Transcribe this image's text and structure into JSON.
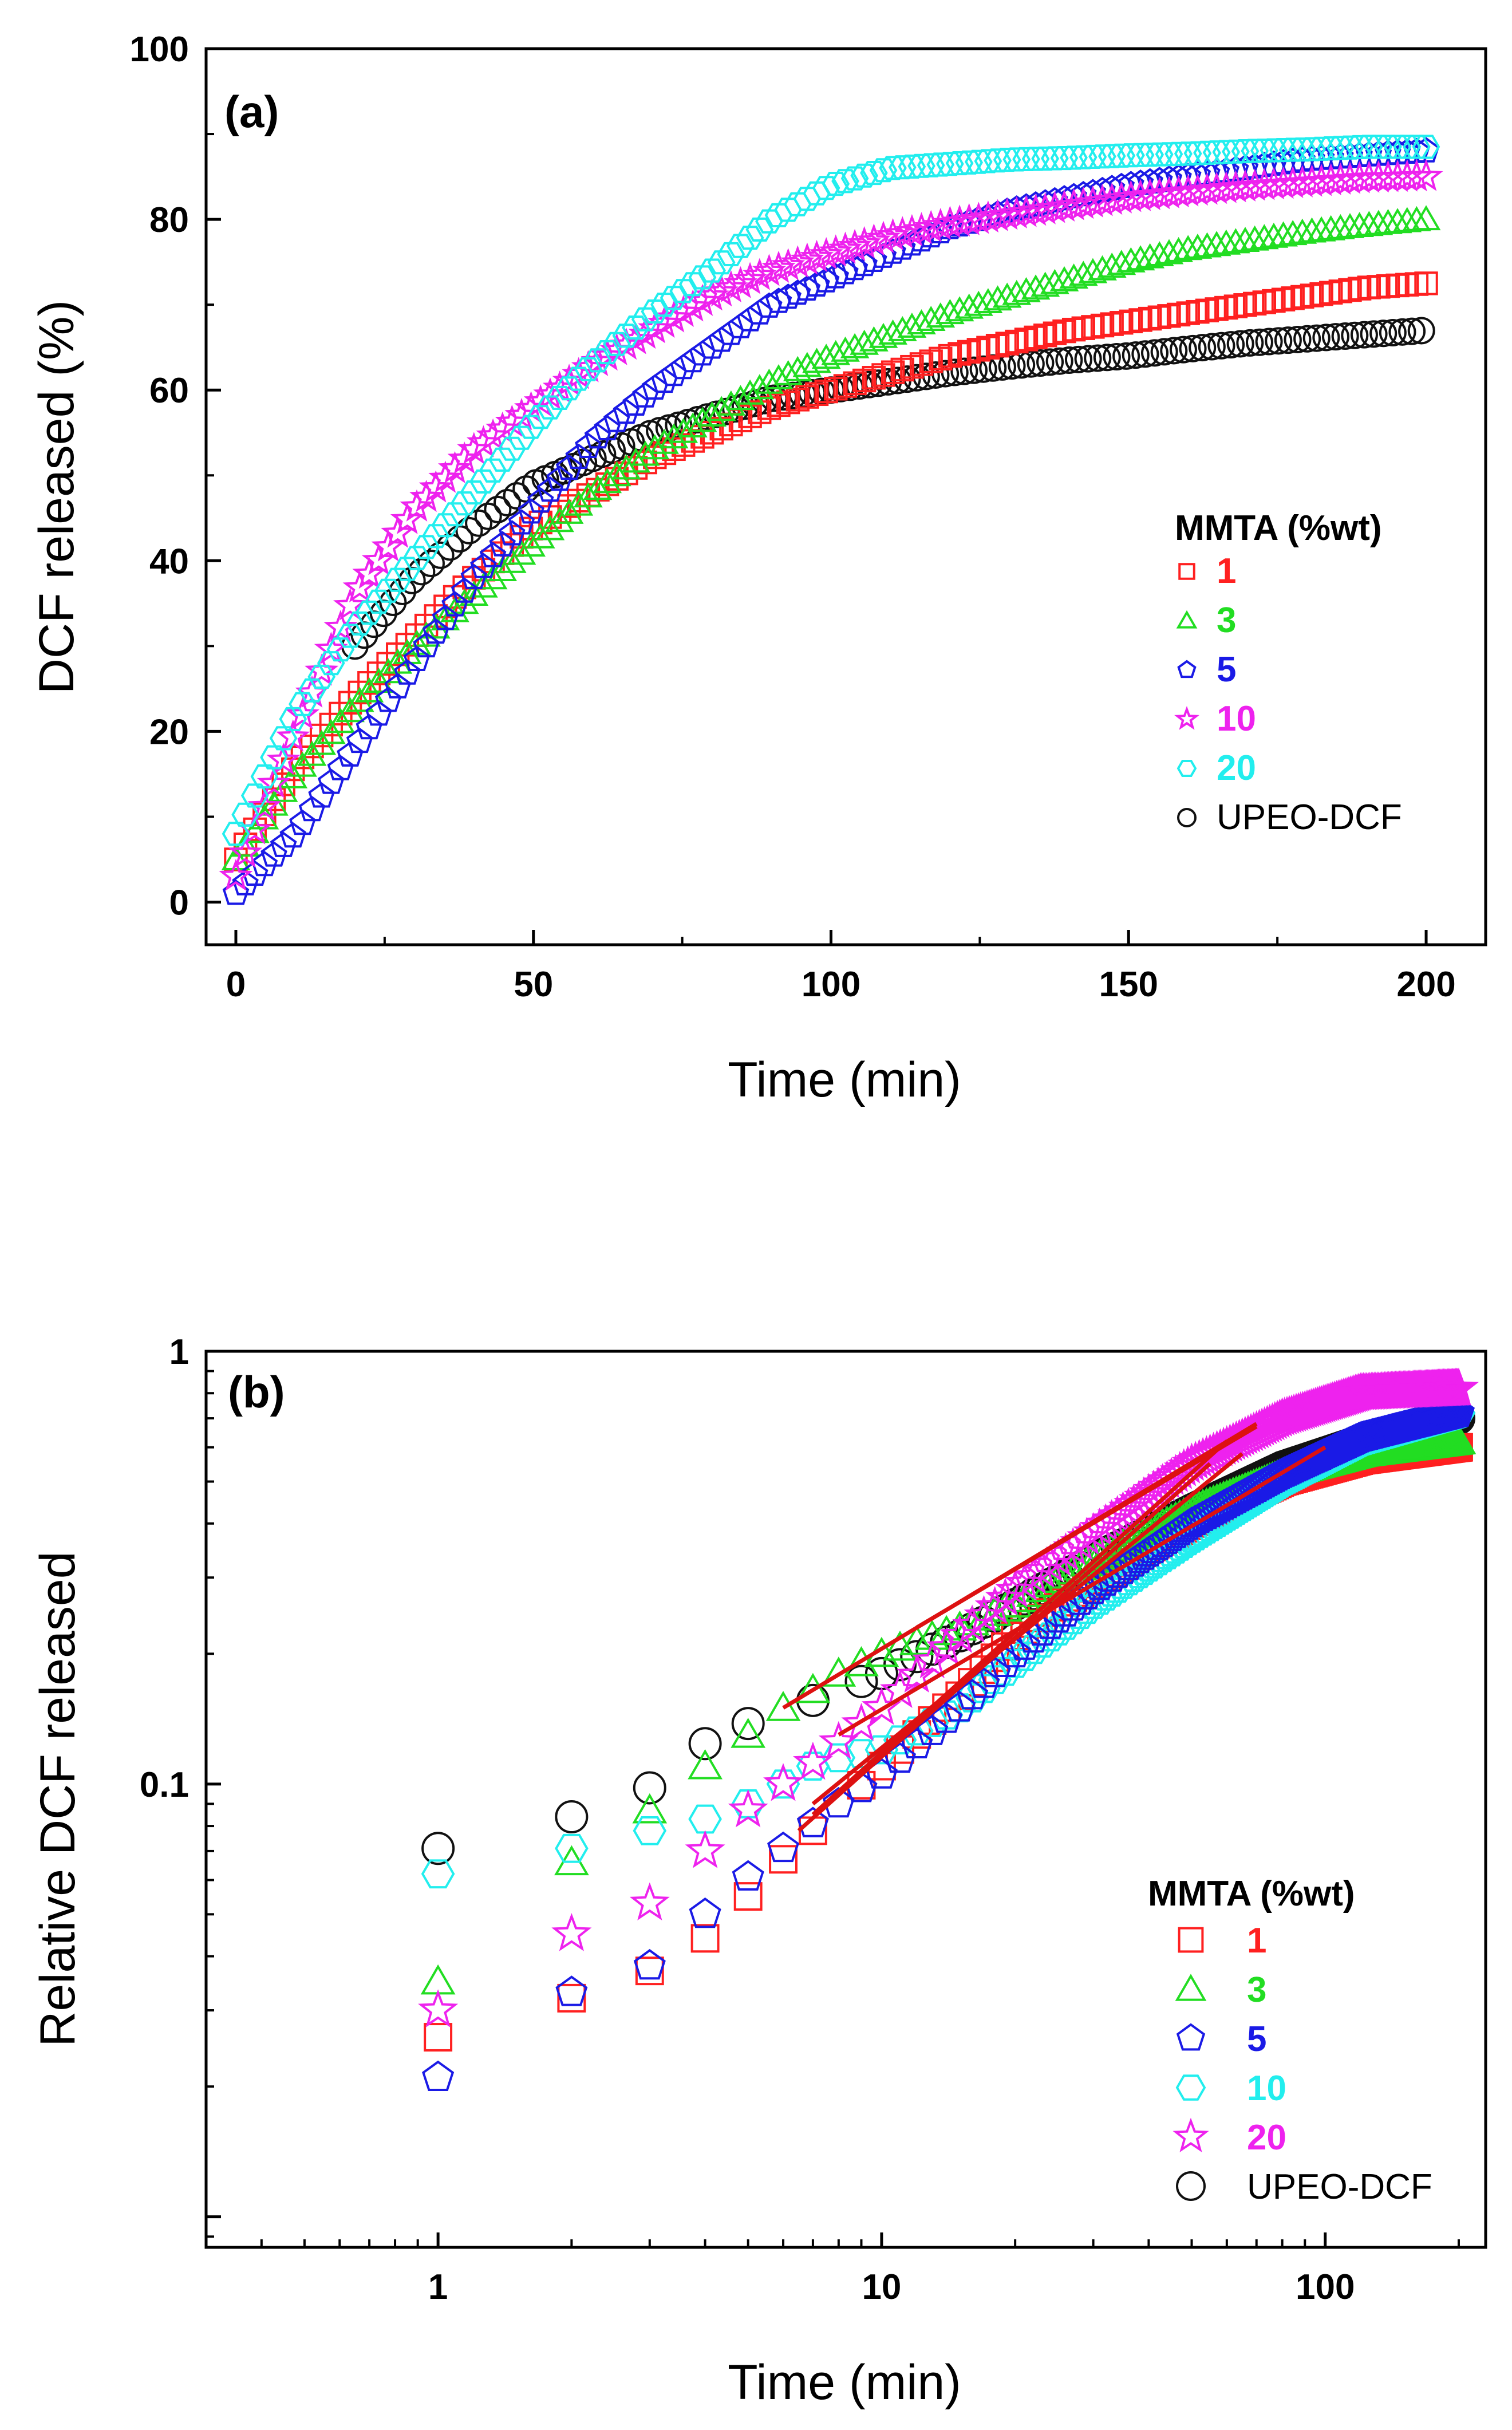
{
  "chart_data": [
    {
      "panel": "(a)",
      "type": "scatter",
      "xlabel": "Time (min)",
      "ylabel": "DCF released (%)",
      "xlim": [
        -5,
        210
      ],
      "ylim": [
        -5,
        100
      ],
      "xticks": [
        0,
        50,
        100,
        150,
        200
      ],
      "yticks": [
        0,
        20,
        40,
        60,
        80,
        100
      ],
      "x_minor_ticks": [
        25,
        75,
        125,
        175
      ],
      "y_minor_ticks": [
        10,
        30,
        50,
        70,
        90
      ],
      "legend_title": "MMTA (%wt)",
      "legend_position": "center-right",
      "series": [
        {
          "name": "1",
          "marker": "square",
          "color": "#ff2020",
          "x": [
            0,
            10,
            20,
            30,
            40,
            50,
            60,
            70,
            80,
            90,
            100,
            110,
            120,
            130,
            140,
            150,
            160,
            170,
            180,
            190,
            200
          ],
          "y": [
            5,
            16,
            24,
            31,
            38,
            44,
            48,
            52,
            55,
            58,
            60,
            62,
            64,
            65.5,
            67,
            68,
            69,
            70,
            71,
            72,
            72.5
          ]
        },
        {
          "name": "3",
          "marker": "triangle",
          "color": "#22dd22",
          "x": [
            0,
            10,
            20,
            30,
            40,
            50,
            60,
            70,
            80,
            90,
            100,
            110,
            120,
            130,
            140,
            150,
            160,
            170,
            180,
            190,
            200
          ],
          "y": [
            5,
            15,
            23,
            30,
            36,
            42,
            48,
            53,
            57,
            61,
            64,
            66.5,
            69,
            71,
            73,
            75,
            76.5,
            77.5,
            78.5,
            79.3,
            80
          ]
        },
        {
          "name": "5",
          "marker": "pentagon",
          "color": "#1a1ae6",
          "x": [
            0,
            10,
            20,
            30,
            40,
            50,
            60,
            70,
            80,
            90,
            100,
            110,
            120,
            130,
            140,
            150,
            160,
            170,
            180,
            190,
            200
          ],
          "y": [
            1,
            8,
            18,
            28,
            38,
            46,
            54,
            60,
            65,
            70,
            73,
            76,
            79,
            81,
            82.5,
            84,
            85,
            86,
            87,
            87.5,
            88
          ]
        },
        {
          "name": "10",
          "marker": "star",
          "color": "#ee22ee",
          "x": [
            0,
            10,
            20,
            30,
            40,
            50,
            60,
            70,
            80,
            90,
            100,
            110,
            120,
            130,
            140,
            150,
            160,
            170,
            180,
            190,
            200
          ],
          "y": [
            3,
            20,
            36,
            46,
            53,
            58,
            63,
            67,
            71,
            74,
            76,
            78,
            79.5,
            80.5,
            81.5,
            82.5,
            83.2,
            83.8,
            84.3,
            84.8,
            85
          ]
        },
        {
          "name": "20",
          "marker": "hexagon",
          "color": "#22eeee",
          "x": [
            0,
            10,
            20,
            30,
            40,
            50,
            60,
            70,
            80,
            90,
            100,
            110,
            120,
            130,
            140,
            150,
            160,
            170,
            180,
            190,
            200
          ],
          "y": [
            8,
            22,
            32,
            40,
            48,
            56,
            63,
            69,
            74,
            80,
            84,
            86,
            86.5,
            87,
            87.2,
            87.5,
            87.7,
            88,
            88.2,
            88.5,
            88.5
          ]
        },
        {
          "name": "UPEO-DCF",
          "marker": "circle",
          "color": "#111111",
          "x": [
            20,
            30,
            40,
            50,
            60,
            70,
            80,
            90,
            100,
            110,
            120,
            130,
            140,
            150,
            160,
            170,
            180,
            190,
            200
          ],
          "y": [
            30,
            38,
            44,
            49,
            52,
            55,
            57,
            59,
            60,
            61,
            62,
            62.8,
            63.5,
            64,
            64.8,
            65.5,
            66,
            66.5,
            67
          ]
        }
      ]
    },
    {
      "panel": "(b)",
      "type": "scatter",
      "xscale": "log",
      "yscale": "log",
      "xlabel": "Time (min)",
      "ylabel": "Relative DCF released",
      "xlim": [
        0.3,
        230
      ],
      "ylim": [
        0.0085,
        1
      ],
      "xticks": [
        1,
        10,
        100
      ],
      "xtick_labels": [
        "1",
        "10",
        "100"
      ],
      "yticks": [
        0.1,
        1
      ],
      "ytick_labels": [
        "0.1",
        "1"
      ],
      "legend_title": "MMTA (%wt)",
      "legend_position": "lower-right",
      "series": [
        {
          "name": "1",
          "marker": "square",
          "color": "#ff2020",
          "x": [
            1,
            2,
            3,
            4,
            5,
            6,
            7,
            10,
            15,
            20,
            30,
            50,
            80,
            120,
            200
          ],
          "y": [
            0.026,
            0.032,
            0.037,
            0.044,
            0.055,
            0.067,
            0.078,
            0.11,
            0.16,
            0.22,
            0.29,
            0.4,
            0.5,
            0.56,
            0.6
          ]
        },
        {
          "name": "3",
          "marker": "triangle",
          "color": "#22dd22",
          "x": [
            1,
            2,
            3,
            4,
            5,
            6,
            7,
            8,
            10,
            15,
            20,
            30,
            50,
            80,
            120,
            200
          ],
          "y": [
            0.035,
            0.066,
            0.087,
            0.11,
            0.13,
            0.15,
            0.165,
            0.18,
            0.2,
            0.23,
            0.26,
            0.33,
            0.43,
            0.52,
            0.58,
            0.62
          ]
        },
        {
          "name": "5",
          "marker": "pentagon",
          "color": "#1a1ae6",
          "x": [
            1,
            2,
            3,
            4,
            5,
            6,
            7,
            8,
            10,
            15,
            20,
            30,
            50,
            80,
            120,
            200
          ],
          "y": [
            0.021,
            0.033,
            0.038,
            0.05,
            0.061,
            0.071,
            0.081,
            0.09,
            0.105,
            0.15,
            0.2,
            0.28,
            0.4,
            0.52,
            0.63,
            0.72
          ]
        },
        {
          "name": "10",
          "marker": "hexagon",
          "color": "#22eeee",
          "x": [
            1,
            2,
            3,
            4,
            5,
            6,
            7,
            8,
            10,
            15,
            20,
            30,
            50,
            80,
            120,
            200
          ],
          "y": [
            0.062,
            0.071,
            0.078,
            0.083,
            0.09,
            0.1,
            0.11,
            0.115,
            0.12,
            0.15,
            0.19,
            0.26,
            0.37,
            0.5,
            0.62,
            0.72
          ]
        },
        {
          "name": "20",
          "marker": "star",
          "color": "#ee22ee",
          "x": [
            1,
            2,
            3,
            4,
            5,
            6,
            7,
            8,
            10,
            15,
            20,
            30,
            50,
            80,
            120,
            200
          ],
          "y": [
            0.03,
            0.045,
            0.053,
            0.07,
            0.087,
            0.1,
            0.112,
            0.125,
            0.15,
            0.22,
            0.28,
            0.38,
            0.55,
            0.7,
            0.8,
            0.82
          ]
        },
        {
          "name": "UPEO-DCF",
          "marker": "circle",
          "color": "#111111",
          "x": [
            1,
            2,
            3,
            4,
            5,
            7,
            10,
            15,
            20,
            30,
            50,
            80,
            120,
            200
          ],
          "y": [
            0.071,
            0.084,
            0.098,
            0.124,
            0.138,
            0.156,
            0.18,
            0.22,
            0.26,
            0.33,
            0.43,
            0.54,
            0.62,
            0.7
          ]
        }
      ],
      "fit_lines": [
        {
          "x": [
            6,
            70
          ],
          "y": [
            0.15,
            0.68
          ]
        },
        {
          "x": [
            12,
            70
          ],
          "y": [
            0.23,
            0.67
          ]
        },
        {
          "x": [
            7,
            60
          ],
          "y": [
            0.085,
            0.62
          ]
        },
        {
          "x": [
            7,
            65
          ],
          "y": [
            0.09,
            0.58
          ]
        },
        {
          "x": [
            6.5,
            55
          ],
          "y": [
            0.078,
            0.55
          ]
        },
        {
          "x": [
            8,
            100
          ],
          "y": [
            0.13,
            0.6
          ]
        }
      ],
      "fit_line_color": "#dd1111"
    }
  ]
}
